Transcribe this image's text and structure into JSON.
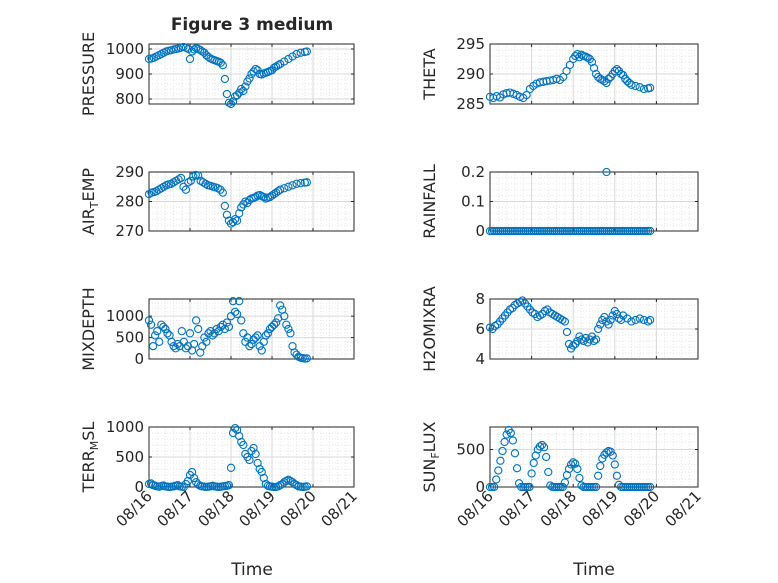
{
  "figure": {
    "title": "Figure 3 medium",
    "xlabel": "Time",
    "marker_color": "#0072BD",
    "grid_color": "#d9d9d9",
    "axes_color": "#262626"
  },
  "chart_data": [
    {
      "type": "scatter",
      "name": "pressure",
      "ylabel": "PRESSURE",
      "ylim": [
        780,
        1020
      ],
      "yticks": [
        800,
        900,
        1000
      ],
      "xlim": [
        "08/16",
        "08/21"
      ],
      "xticks": [
        "08/16",
        "08/17",
        "08/18",
        "08/19",
        "08/20",
        "08/21"
      ],
      "grid": true,
      "x": [
        0.0,
        0.06,
        0.12,
        0.18,
        0.24,
        0.3,
        0.36,
        0.42,
        0.48,
        0.54,
        0.6,
        0.66,
        0.72,
        0.78,
        0.84,
        0.9,
        0.96,
        1.0,
        1.05,
        1.1,
        1.15,
        1.2,
        1.25,
        1.3,
        1.35,
        1.4,
        1.45,
        1.5,
        1.55,
        1.6,
        1.65,
        1.7,
        1.75,
        1.8,
        1.85,
        1.9,
        1.95,
        2.0,
        2.05,
        2.1,
        2.15,
        2.2,
        2.25,
        2.3,
        2.35,
        2.4,
        2.45,
        2.5,
        2.55,
        2.6,
        2.65,
        2.7,
        2.75,
        2.8,
        2.85,
        2.9,
        2.95,
        3.0,
        3.05,
        3.1,
        3.15,
        3.2,
        3.3,
        3.4,
        3.5,
        3.6,
        3.7,
        3.8,
        3.85
      ],
      "y": [
        960,
        962,
        965,
        970,
        975,
        980,
        985,
        990,
        993,
        995,
        998,
        1000,
        1002,
        1005,
        1008,
        1005,
        1000,
        960,
        990,
        998,
        1003,
        1000,
        996,
        990,
        985,
        975,
        968,
        962,
        958,
        955,
        952,
        949,
        945,
        935,
        880,
        820,
        785,
        780,
        790,
        810,
        815,
        825,
        840,
        832,
        850,
        870,
        882,
        900,
        910,
        920,
        915,
        900,
        898,
        902,
        905,
        908,
        912,
        915,
        925,
        930,
        935,
        940,
        950,
        960,
        970,
        980,
        985,
        988,
        990
      ]
    },
    {
      "type": "scatter",
      "name": "theta",
      "ylabel": "THETA",
      "ylim": [
        285,
        295
      ],
      "yticks": [
        285,
        290,
        295
      ],
      "xlim": [
        "08/16",
        "08/21"
      ],
      "xticks": [
        "08/16",
        "08/17",
        "08/18",
        "08/19",
        "08/20",
        "08/21"
      ],
      "grid": true,
      "x": [
        0.0,
        0.08,
        0.16,
        0.24,
        0.32,
        0.4,
        0.48,
        0.56,
        0.64,
        0.72,
        0.8,
        0.88,
        0.96,
        1.04,
        1.12,
        1.2,
        1.28,
        1.36,
        1.44,
        1.52,
        1.6,
        1.68,
        1.76,
        1.84,
        1.92,
        2.0,
        2.05,
        2.1,
        2.15,
        2.2,
        2.25,
        2.3,
        2.35,
        2.4,
        2.45,
        2.5,
        2.55,
        2.6,
        2.65,
        2.7,
        2.75,
        2.8,
        2.85,
        2.9,
        2.95,
        3.0,
        3.05,
        3.1,
        3.15,
        3.2,
        3.25,
        3.3,
        3.35,
        3.4,
        3.5,
        3.6,
        3.7,
        3.8,
        3.85
      ],
      "y": [
        286.2,
        286.0,
        286.3,
        286.1,
        286.6,
        286.8,
        286.9,
        286.7,
        286.5,
        286.2,
        286.0,
        286.5,
        287.5,
        288.0,
        288.4,
        288.6,
        288.7,
        288.8,
        288.9,
        289.0,
        289.2,
        289.0,
        289.5,
        290.5,
        291.5,
        292.5,
        293.0,
        293.3,
        292.8,
        293.2,
        293.0,
        292.9,
        292.7,
        292.5,
        292.0,
        291.0,
        290.0,
        289.5,
        289.2,
        289.0,
        288.8,
        288.5,
        289.2,
        289.5,
        290.0,
        290.5,
        290.8,
        290.5,
        290.0,
        289.8,
        289.2,
        288.8,
        288.5,
        288.2,
        288.0,
        287.8,
        287.5,
        287.6,
        287.7
      ]
    },
    {
      "type": "scatter",
      "name": "air_temp",
      "ylabel": "AIR_TEMP",
      "ylim": [
        270,
        290
      ],
      "yticks": [
        270,
        280,
        290
      ],
      "xlim": [
        "08/16",
        "08/21"
      ],
      "xticks": [
        "08/16",
        "08/17",
        "08/18",
        "08/19",
        "08/20",
        "08/21"
      ],
      "grid": true,
      "x": [
        0.0,
        0.06,
        0.12,
        0.18,
        0.24,
        0.3,
        0.36,
        0.42,
        0.48,
        0.54,
        0.6,
        0.66,
        0.72,
        0.78,
        0.84,
        0.9,
        0.96,
        1.02,
        1.08,
        1.14,
        1.2,
        1.26,
        1.32,
        1.38,
        1.44,
        1.5,
        1.56,
        1.62,
        1.68,
        1.74,
        1.8,
        1.85,
        1.9,
        1.95,
        2.0,
        2.05,
        2.1,
        2.15,
        2.2,
        2.25,
        2.3,
        2.35,
        2.4,
        2.45,
        2.5,
        2.55,
        2.6,
        2.65,
        2.7,
        2.75,
        2.8,
        2.85,
        2.9,
        2.95,
        3.0,
        3.05,
        3.1,
        3.15,
        3.2,
        3.3,
        3.4,
        3.5,
        3.6,
        3.7,
        3.8,
        3.85
      ],
      "y": [
        282.5,
        283.0,
        283.2,
        283.5,
        284.0,
        284.5,
        285.0,
        285.5,
        285.8,
        286.0,
        286.5,
        287.0,
        287.5,
        288.0,
        285.0,
        284.0,
        286.5,
        287.0,
        288.5,
        289.0,
        288.8,
        287.0,
        286.5,
        286.0,
        285.5,
        285.3,
        285.0,
        284.8,
        284.5,
        284.0,
        283.0,
        278.5,
        275.5,
        273.5,
        272.5,
        273.0,
        274.0,
        273.5,
        276.0,
        278.0,
        279.0,
        280.0,
        279.5,
        280.5,
        281.0,
        281.2,
        281.5,
        282.0,
        282.2,
        281.8,
        281.5,
        281.0,
        281.3,
        281.5,
        282.0,
        282.5,
        283.0,
        283.5,
        284.0,
        284.5,
        285.0,
        285.5,
        286.0,
        286.2,
        286.4,
        286.5
      ]
    },
    {
      "type": "scatter",
      "name": "rainfall",
      "ylabel": "RAINFALL",
      "ylim": [
        0,
        0.2
      ],
      "yticks": [
        0,
        0.1,
        0.2
      ],
      "xlim": [
        "08/16",
        "08/21"
      ],
      "xticks": [
        "08/16",
        "08/17",
        "08/18",
        "08/19",
        "08/20",
        "08/21"
      ],
      "grid": true,
      "x": [
        0.0,
        0.05,
        0.1,
        0.15,
        0.2,
        0.25,
        0.3,
        0.35,
        0.4,
        0.45,
        0.5,
        0.55,
        0.6,
        0.65,
        0.7,
        0.75,
        0.8,
        0.85,
        0.9,
        0.95,
        1.0,
        1.05,
        1.1,
        1.15,
        1.2,
        1.25,
        1.3,
        1.35,
        1.4,
        1.45,
        1.5,
        1.55,
        1.6,
        1.65,
        1.7,
        1.75,
        1.8,
        1.85,
        1.9,
        1.95,
        2.0,
        2.05,
        2.1,
        2.15,
        2.2,
        2.25,
        2.3,
        2.35,
        2.4,
        2.45,
        2.5,
        2.55,
        2.6,
        2.65,
        2.7,
        2.75,
        2.8,
        2.85,
        2.9,
        2.95,
        3.0,
        3.05,
        3.1,
        3.15,
        3.2,
        3.25,
        3.3,
        3.35,
        3.4,
        3.45,
        3.5,
        3.55,
        3.6,
        3.65,
        3.7,
        3.75,
        3.8,
        3.85,
        2.8
      ],
      "y": [
        0,
        0,
        0,
        0,
        0,
        0,
        0,
        0,
        0,
        0,
        0,
        0,
        0,
        0,
        0,
        0,
        0,
        0,
        0,
        0,
        0,
        0,
        0,
        0,
        0,
        0,
        0,
        0,
        0,
        0,
        0,
        0,
        0,
        0,
        0,
        0,
        0,
        0,
        0,
        0,
        0,
        0,
        0,
        0,
        0,
        0,
        0,
        0,
        0,
        0,
        0,
        0,
        0,
        0,
        0,
        0,
        0,
        0,
        0,
        0,
        0,
        0,
        0,
        0,
        0,
        0,
        0,
        0,
        0,
        0,
        0,
        0,
        0,
        0,
        0,
        0,
        0,
        0,
        0.2
      ]
    },
    {
      "type": "scatter",
      "name": "mixdepth",
      "ylabel": "MIXDEPTH",
      "ylim": [
        0,
        1400
      ],
      "yticks": [
        0,
        500,
        1000
      ],
      "xlim": [
        "08/16",
        "08/21"
      ],
      "xticks": [
        "08/16",
        "08/17",
        "08/18",
        "08/19",
        "08/20",
        "08/21"
      ],
      "grid": true,
      "x": [
        0.0,
        0.05,
        0.1,
        0.15,
        0.2,
        0.25,
        0.3,
        0.35,
        0.4,
        0.45,
        0.5,
        0.55,
        0.6,
        0.65,
        0.7,
        0.75,
        0.8,
        0.85,
        0.9,
        0.95,
        1.0,
        1.05,
        1.1,
        1.15,
        1.2,
        1.25,
        1.3,
        1.35,
        1.4,
        1.45,
        1.5,
        1.55,
        1.6,
        1.65,
        1.7,
        1.75,
        1.8,
        1.85,
        1.9,
        1.95,
        2.0,
        2.05,
        2.1,
        2.15,
        2.2,
        2.25,
        2.3,
        2.35,
        2.4,
        2.45,
        2.5,
        2.55,
        2.6,
        2.65,
        2.7,
        2.75,
        2.8,
        2.85,
        2.9,
        2.95,
        3.0,
        3.05,
        3.1,
        3.15,
        3.2,
        3.25,
        3.3,
        3.35,
        3.4,
        3.45,
        3.5,
        3.55,
        3.6,
        3.65,
        3.7,
        3.75,
        3.8,
        3.85
      ],
      "y": [
        900,
        800,
        300,
        550,
        650,
        400,
        800,
        750,
        700,
        600,
        550,
        400,
        300,
        250,
        350,
        300,
        650,
        400,
        250,
        300,
        600,
        200,
        350,
        900,
        700,
        150,
        300,
        500,
        400,
        600,
        650,
        550,
        600,
        700,
        650,
        750,
        800,
        700,
        850,
        750,
        1000,
        1350,
        1100,
        1050,
        1350,
        900,
        600,
        400,
        500,
        300,
        350,
        450,
        500,
        550,
        300,
        200,
        400,
        550,
        600,
        700,
        750,
        800,
        850,
        950,
        1250,
        1150,
        1000,
        800,
        700,
        600,
        300,
        150,
        100,
        50,
        30,
        20,
        10,
        15
      ]
    },
    {
      "type": "scatter",
      "name": "h2omixra",
      "ylabel": "H2OMIXRA",
      "ylim": [
        4,
        8
      ],
      "yticks": [
        4,
        6,
        8
      ],
      "xlim": [
        "08/16",
        "08/21"
      ],
      "xticks": [
        "08/16",
        "08/17",
        "08/18",
        "08/19",
        "08/20",
        "08/21"
      ],
      "grid": true,
      "x": [
        0.0,
        0.06,
        0.12,
        0.18,
        0.24,
        0.3,
        0.36,
        0.42,
        0.48,
        0.54,
        0.6,
        0.66,
        0.72,
        0.78,
        0.84,
        0.9,
        0.96,
        1.02,
        1.08,
        1.14,
        1.2,
        1.26,
        1.32,
        1.38,
        1.44,
        1.5,
        1.56,
        1.62,
        1.68,
        1.74,
        1.8,
        1.85,
        1.9,
        1.95,
        2.0,
        2.05,
        2.1,
        2.15,
        2.2,
        2.25,
        2.3,
        2.35,
        2.4,
        2.45,
        2.5,
        2.55,
        2.6,
        2.65,
        2.7,
        2.75,
        2.8,
        2.85,
        2.9,
        2.95,
        3.0,
        3.05,
        3.1,
        3.15,
        3.2,
        3.3,
        3.4,
        3.5,
        3.6,
        3.7,
        3.8,
        3.85
      ],
      "y": [
        6.1,
        6.0,
        6.2,
        6.3,
        6.5,
        6.7,
        6.9,
        7.1,
        7.3,
        7.4,
        7.6,
        7.7,
        7.8,
        7.9,
        7.7,
        7.5,
        7.3,
        7.1,
        7.0,
        6.8,
        6.9,
        7.0,
        7.2,
        7.3,
        7.1,
        7.0,
        6.9,
        6.8,
        6.7,
        6.6,
        6.5,
        5.8,
        5.0,
        4.7,
        4.9,
        5.0,
        5.2,
        5.5,
        5.3,
        5.2,
        5.4,
        5.1,
        5.3,
        5.5,
        5.2,
        5.3,
        6.0,
        6.3,
        6.6,
        6.8,
        6.5,
        6.3,
        6.6,
        6.9,
        7.2,
        7.0,
        6.7,
        6.6,
        6.9,
        6.7,
        6.5,
        6.6,
        6.7,
        6.6,
        6.5,
        6.6
      ]
    },
    {
      "type": "scatter",
      "name": "terr_msl",
      "ylabel": "TERR_MSL",
      "ylim": [
        0,
        1000
      ],
      "yticks": [
        0,
        500,
        1000
      ],
      "xlim": [
        "08/16",
        "08/21"
      ],
      "xticks": [
        "08/16",
        "08/17",
        "08/18",
        "08/19",
        "08/20",
        "08/21"
      ],
      "grid": true,
      "x": [
        0.0,
        0.05,
        0.1,
        0.15,
        0.2,
        0.25,
        0.3,
        0.35,
        0.4,
        0.45,
        0.5,
        0.55,
        0.6,
        0.65,
        0.7,
        0.75,
        0.8,
        0.85,
        0.9,
        0.95,
        1.0,
        1.05,
        1.1,
        1.15,
        1.2,
        1.25,
        1.3,
        1.35,
        1.4,
        1.45,
        1.5,
        1.55,
        1.6,
        1.65,
        1.7,
        1.75,
        1.8,
        1.85,
        1.9,
        1.95,
        2.0,
        2.05,
        2.1,
        2.15,
        2.2,
        2.25,
        2.3,
        2.35,
        2.4,
        2.45,
        2.5,
        2.55,
        2.6,
        2.65,
        2.7,
        2.75,
        2.8,
        2.85,
        2.9,
        2.95,
        3.0,
        3.05,
        3.1,
        3.15,
        3.2,
        3.25,
        3.3,
        3.35,
        3.4,
        3.45,
        3.5,
        3.55,
        3.6,
        3.65,
        3.7,
        3.75,
        3.8,
        3.85
      ],
      "y": [
        50,
        60,
        30,
        20,
        10,
        5,
        15,
        25,
        10,
        5,
        0,
        5,
        10,
        20,
        30,
        10,
        5,
        0,
        50,
        100,
        200,
        250,
        150,
        80,
        40,
        20,
        10,
        5,
        0,
        5,
        10,
        20,
        10,
        5,
        0,
        5,
        10,
        15,
        20,
        30,
        320,
        900,
        980,
        950,
        850,
        750,
        700,
        550,
        500,
        450,
        600,
        650,
        550,
        400,
        300,
        250,
        150,
        50,
        20,
        10,
        5,
        0,
        0,
        10,
        30,
        50,
        80,
        100,
        120,
        100,
        80,
        50,
        30,
        10,
        5,
        0,
        5,
        10
      ]
    },
    {
      "type": "scatter",
      "name": "sun_flux",
      "ylabel": "SUN_FLUX",
      "ylim": [
        0,
        800
      ],
      "yticks": [
        0,
        500
      ],
      "xlim": [
        "08/16",
        "08/21"
      ],
      "xticks": [
        "08/16",
        "08/17",
        "08/18",
        "08/19",
        "08/20",
        "08/21"
      ],
      "grid": true,
      "x": [
        0.0,
        0.05,
        0.1,
        0.15,
        0.2,
        0.25,
        0.3,
        0.35,
        0.4,
        0.45,
        0.5,
        0.55,
        0.6,
        0.65,
        0.7,
        0.75,
        0.8,
        0.85,
        0.9,
        0.95,
        1.0,
        1.05,
        1.1,
        1.15,
        1.2,
        1.25,
        1.3,
        1.35,
        1.4,
        1.45,
        1.5,
        1.55,
        1.6,
        1.65,
        1.7,
        1.75,
        1.8,
        1.85,
        1.9,
        1.95,
        2.0,
        2.05,
        2.1,
        2.15,
        2.2,
        2.25,
        2.3,
        2.35,
        2.4,
        2.45,
        2.5,
        2.55,
        2.6,
        2.65,
        2.7,
        2.75,
        2.8,
        2.85,
        2.9,
        2.95,
        3.0,
        3.05,
        3.1,
        3.15,
        3.2,
        3.25,
        3.3,
        3.35,
        3.4,
        3.45,
        3.5,
        3.55,
        3.6,
        3.65,
        3.7,
        3.75,
        3.8,
        3.85
      ],
      "y": [
        0,
        0,
        0,
        100,
        220,
        350,
        480,
        600,
        700,
        760,
        720,
        620,
        450,
        250,
        50,
        0,
        0,
        0,
        0,
        0,
        180,
        320,
        420,
        500,
        540,
        560,
        530,
        400,
        200,
        20,
        0,
        0,
        0,
        0,
        0,
        0,
        60,
        160,
        240,
        300,
        330,
        310,
        240,
        120,
        20,
        0,
        0,
        0,
        0,
        0,
        0,
        0,
        150,
        280,
        380,
        430,
        460,
        480,
        470,
        420,
        300,
        150,
        30,
        0,
        0,
        0,
        0,
        0,
        0,
        0,
        0,
        0,
        0,
        0,
        0,
        0,
        0,
        0
      ]
    }
  ]
}
